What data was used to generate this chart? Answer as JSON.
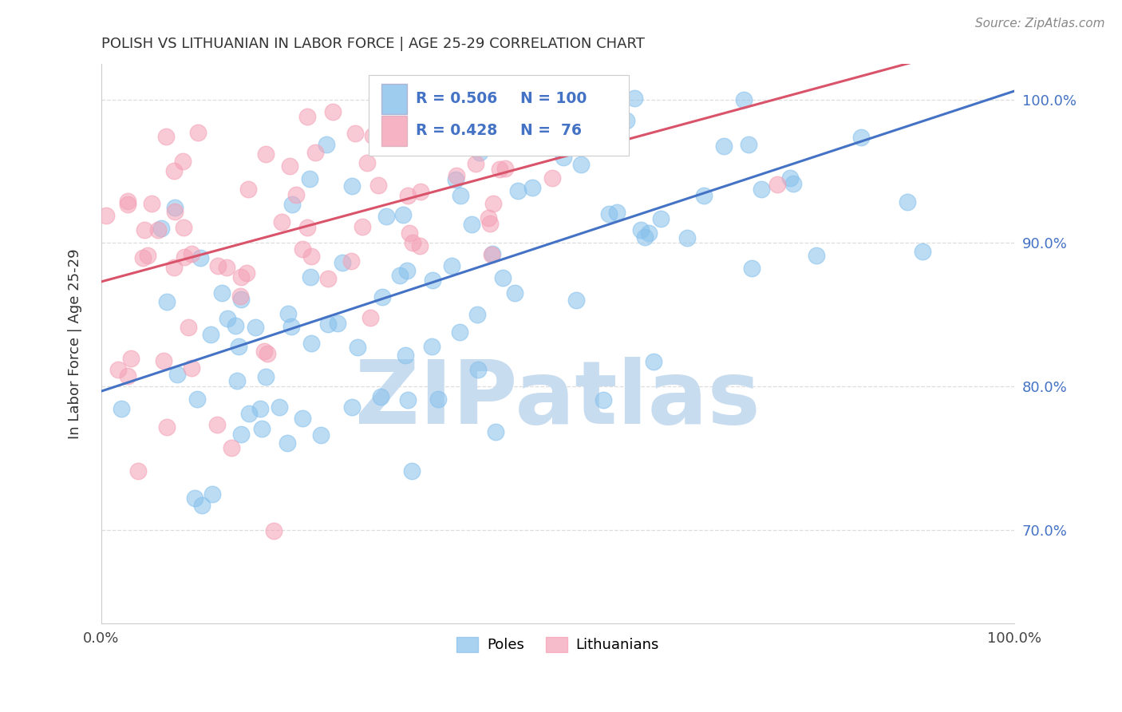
{
  "title": "POLISH VS LITHUANIAN IN LABOR FORCE | AGE 25-29 CORRELATION CHART",
  "source": "Source: ZipAtlas.com",
  "ylabel": "In Labor Force | Age 25-29",
  "xlim": [
    0.0,
    1.0
  ],
  "ylim": [
    0.635,
    1.025
  ],
  "x_ticks": [
    0.0,
    1.0
  ],
  "x_tick_labels": [
    "0.0%",
    "100.0%"
  ],
  "y_ticks": [
    0.7,
    0.8,
    0.9,
    1.0
  ],
  "y_tick_labels": [
    "70.0%",
    "80.0%",
    "90.0%",
    "100.0%"
  ],
  "blue_color": "#85C0EC",
  "pink_color": "#F4A0B5",
  "trend_blue": "#4472C4",
  "trend_pink": "#D9546A",
  "R_blue": 0.506,
  "N_blue": 100,
  "R_pink": 0.428,
  "N_pink": 76,
  "watermark": "ZIPatlas",
  "watermark_color": "#C8DCF0",
  "legend_labels": [
    "Poles",
    "Lithuanians"
  ],
  "background_color": "#FFFFFF",
  "grid_color": "#DDDDDD",
  "tick_color": "#4472C4"
}
